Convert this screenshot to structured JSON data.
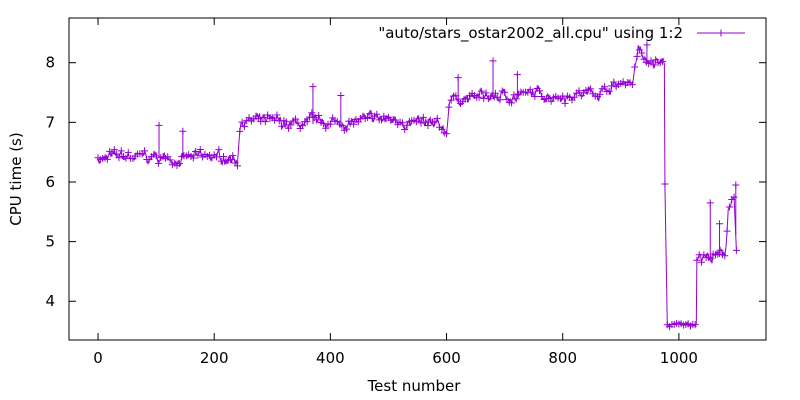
{
  "chart_data": {
    "type": "line",
    "title": "",
    "xlabel": "Test number",
    "ylabel": "CPU time (s)",
    "xlim": [
      -50,
      1150
    ],
    "ylim": [
      3.35,
      8.75
    ],
    "x_ticks": [
      0,
      200,
      400,
      600,
      800,
      1000
    ],
    "y_ticks": [
      4,
      5,
      6,
      7,
      8
    ],
    "grid": false,
    "legend_position": "top-right",
    "marker": "plus",
    "color": "#9400d3",
    "series": [
      {
        "name": "\"auto/stars_ostar2002_all.cpu\" using 1:2",
        "segments": [
          {
            "x": [
              0,
              240,
              245,
              330,
              520,
              600,
              605,
              850,
              920,
              930,
              940,
              975
            ],
            "y": [
              6.4,
              6.4,
              7.05,
              6.95,
              7.05,
              6.85,
              7.4,
              7.5,
              7.7,
              8.3,
              8.0,
              8.0
            ]
          },
          {
            "x": [
              976,
              980,
              1030
            ],
            "y": [
              5.95,
              3.6,
              3.62
            ]
          },
          {
            "x": [
              1031,
              1035,
              1080,
              1085,
              1095,
              1100
            ],
            "y": [
              4.7,
              4.72,
              4.75,
              5.6,
              5.8,
              4.65
            ]
          }
        ],
        "outliers": [
          {
            "x": 105,
            "y": 6.95
          },
          {
            "x": 146,
            "y": 6.85
          },
          {
            "x": 370,
            "y": 7.6
          },
          {
            "x": 418,
            "y": 7.45
          },
          {
            "x": 620,
            "y": 7.75
          },
          {
            "x": 680,
            "y": 8.03
          },
          {
            "x": 722,
            "y": 7.8
          },
          {
            "x": 945,
            "y": 8.3
          },
          {
            "x": 1054,
            "y": 5.65
          },
          {
            "x": 1070,
            "y": 5.3
          },
          {
            "x": 1098,
            "y": 5.95
          }
        ]
      }
    ]
  }
}
